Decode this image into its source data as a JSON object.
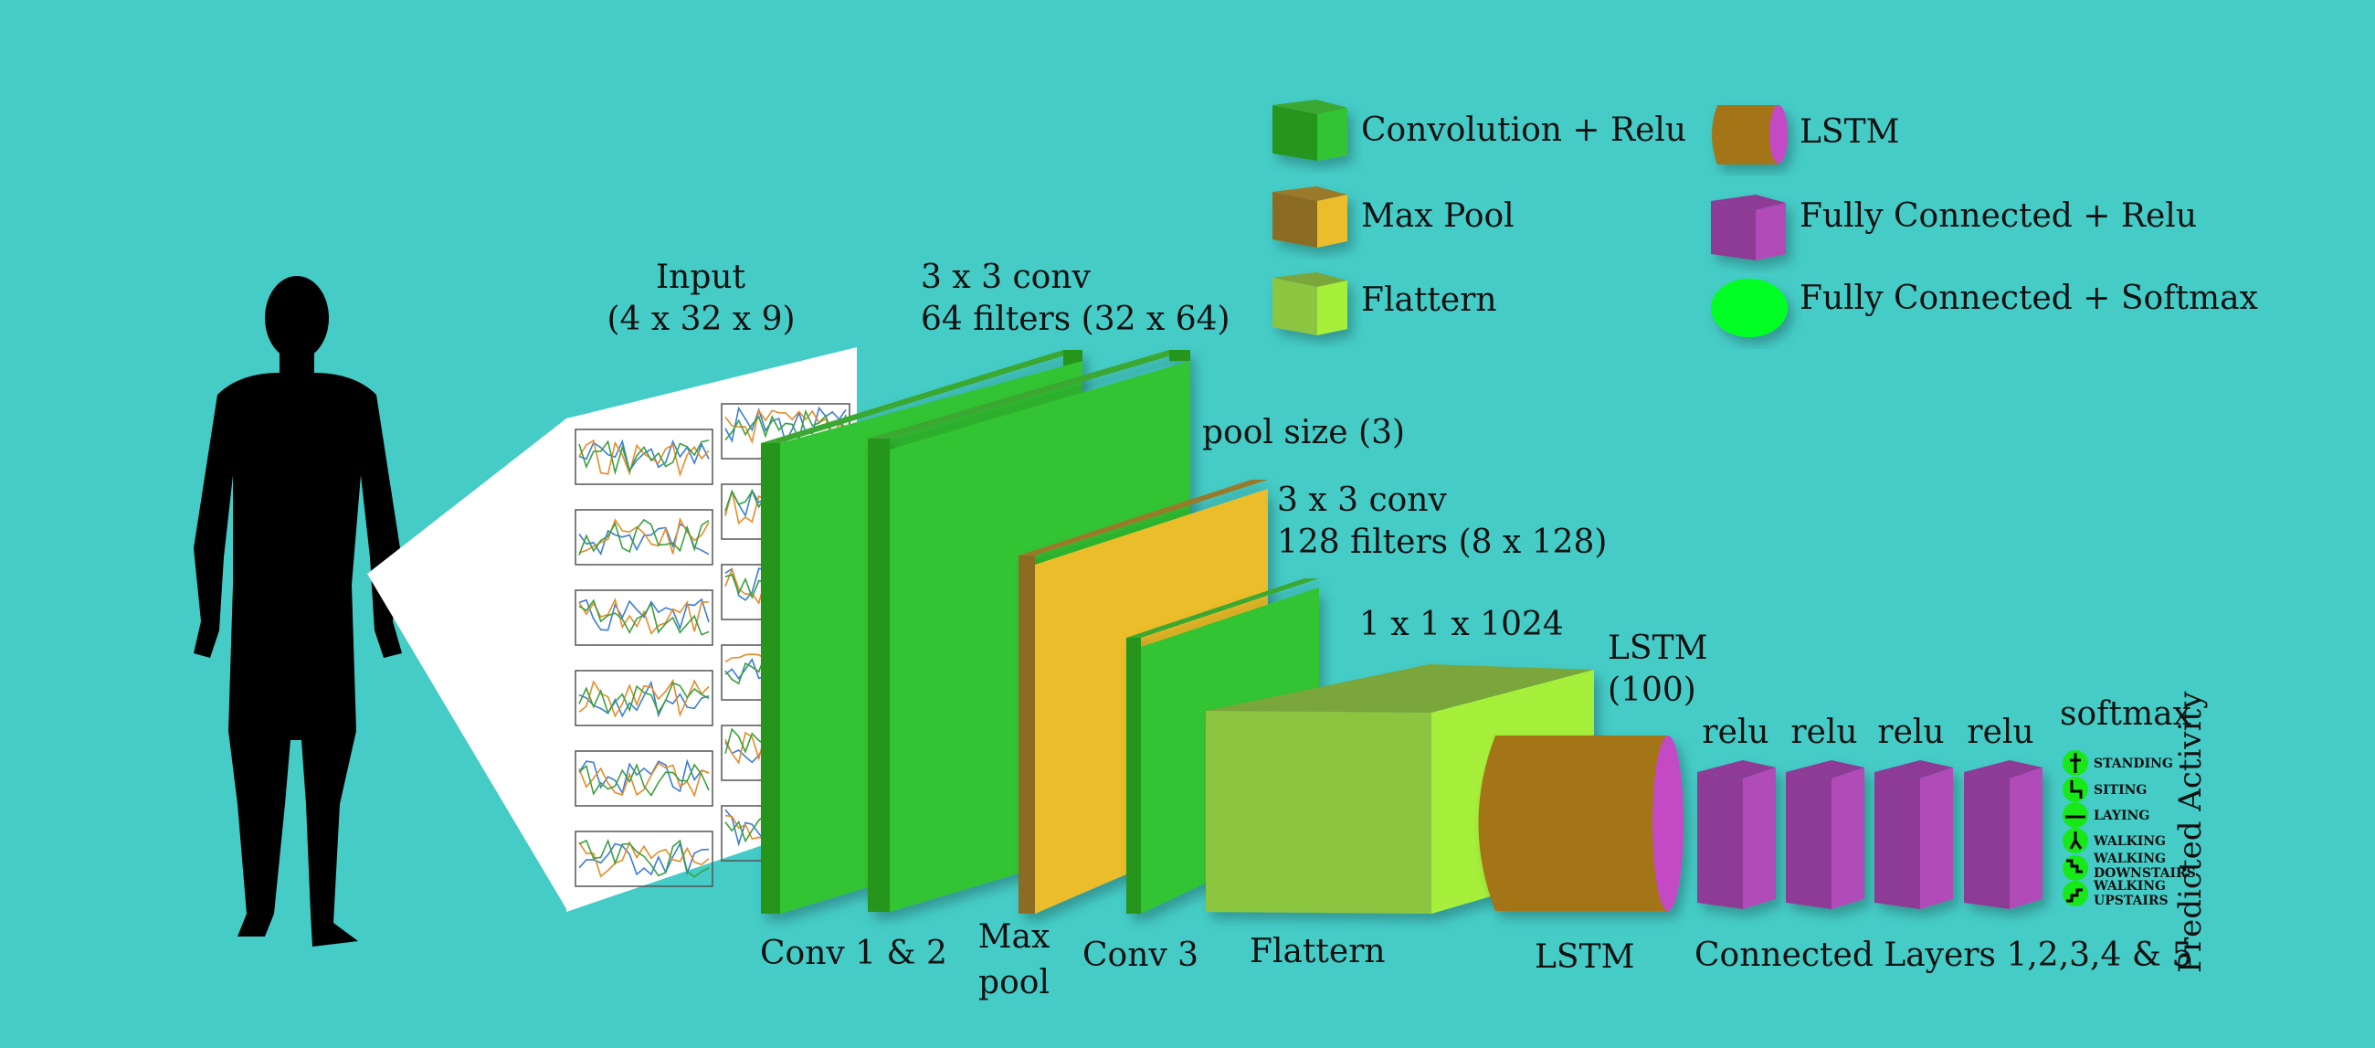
{
  "colors": {
    "background": "#45ccc7",
    "conv": "#2ec42e",
    "maxpool": "#ebbd2c",
    "flatten": "#8cc63f",
    "lstm": "#a37419",
    "lstm_face": "#c44ac4",
    "fc_relu": "#a844b0",
    "fc_softmax": "#00ff22"
  },
  "icons": {
    "person": "person-silhouette-icon",
    "activity_standing": "standing-person-icon",
    "activity_sitting": "sitting-person-icon",
    "activity_laying": "laying-person-icon",
    "activity_walking": "walking-person-icon",
    "activity_walking_downstairs": "walking-downstairs-icon",
    "activity_walking_upstairs": "walking-upstairs-icon"
  },
  "legend": {
    "conv_relu": "Convolution + Relu",
    "max_pool": "Max Pool",
    "flatten": "Flattern",
    "lstm": "LSTM",
    "fc_relu": "Fully Connected + Relu",
    "fc_softmax": "Fully Connected + Softmax"
  },
  "labels": {
    "input_title": "Input",
    "input_dims": "(4 x 32 x 9)",
    "conv12_top_line1": "3 x 3 conv",
    "conv12_top_line2": "64 filters (32 x 64)",
    "pool_size": "pool size (3)",
    "conv3_top_line1": "3 x 3 conv",
    "conv3_top_line2": "128 filters (8 x 128)",
    "flatten_dims": "1 x 1 x 1024",
    "lstm_top_line1": "LSTM",
    "lstm_top_line2": "(100)",
    "relu_1": "relu",
    "relu_2": "relu",
    "relu_3": "relu",
    "relu_4": "relu",
    "softmax": "softmax",
    "conv12_bottom": "Conv 1 & 2",
    "maxpool_bottom_line1": "Max",
    "maxpool_bottom_line2": "pool",
    "conv3_bottom": "Conv 3",
    "flatten_bottom": "Flattern",
    "lstm_bottom": "LSTM",
    "fc_bottom": "Connected Layers 1,2,3,4 & 5",
    "predicted": "Predicted Activity"
  },
  "activities": {
    "standing": "STANDING",
    "sitting": "SITING",
    "laying": "LAYING",
    "walking": "WALKING",
    "walking_downstairs": "WALKING DOWNSTAIRS",
    "walking_upstairs": "WALKING UPSTAIRS"
  }
}
